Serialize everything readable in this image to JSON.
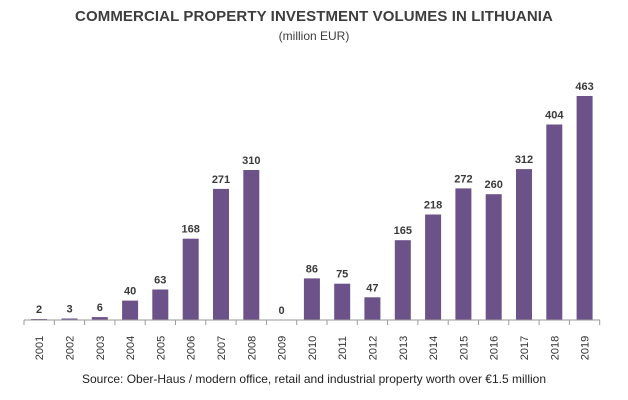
{
  "chart_data": {
    "type": "bar",
    "title": "COMMERCIAL PROPERTY INVESTMENT VOLUMES IN LITHUANIA",
    "subtitle": "(million EUR)",
    "source": "Source: Ober-Haus / modern office, retail and industrial property worth over €1.5 million",
    "categories": [
      "2001",
      "2002",
      "2003",
      "2004",
      "2005",
      "2006",
      "2007",
      "2008",
      "2009",
      "2010",
      "2011",
      "2012",
      "2013",
      "2014",
      "2015",
      "2016",
      "2017",
      "2018",
      "2019"
    ],
    "values": [
      2,
      3,
      6,
      40,
      63,
      168,
      271,
      310,
      0,
      86,
      75,
      47,
      165,
      218,
      272,
      260,
      312,
      404,
      463
    ],
    "ylim": [
      0,
      463
    ],
    "grid": false,
    "bar_color": "#6b5288",
    "axis_color": "#9a9a9a",
    "data_labels": true
  }
}
